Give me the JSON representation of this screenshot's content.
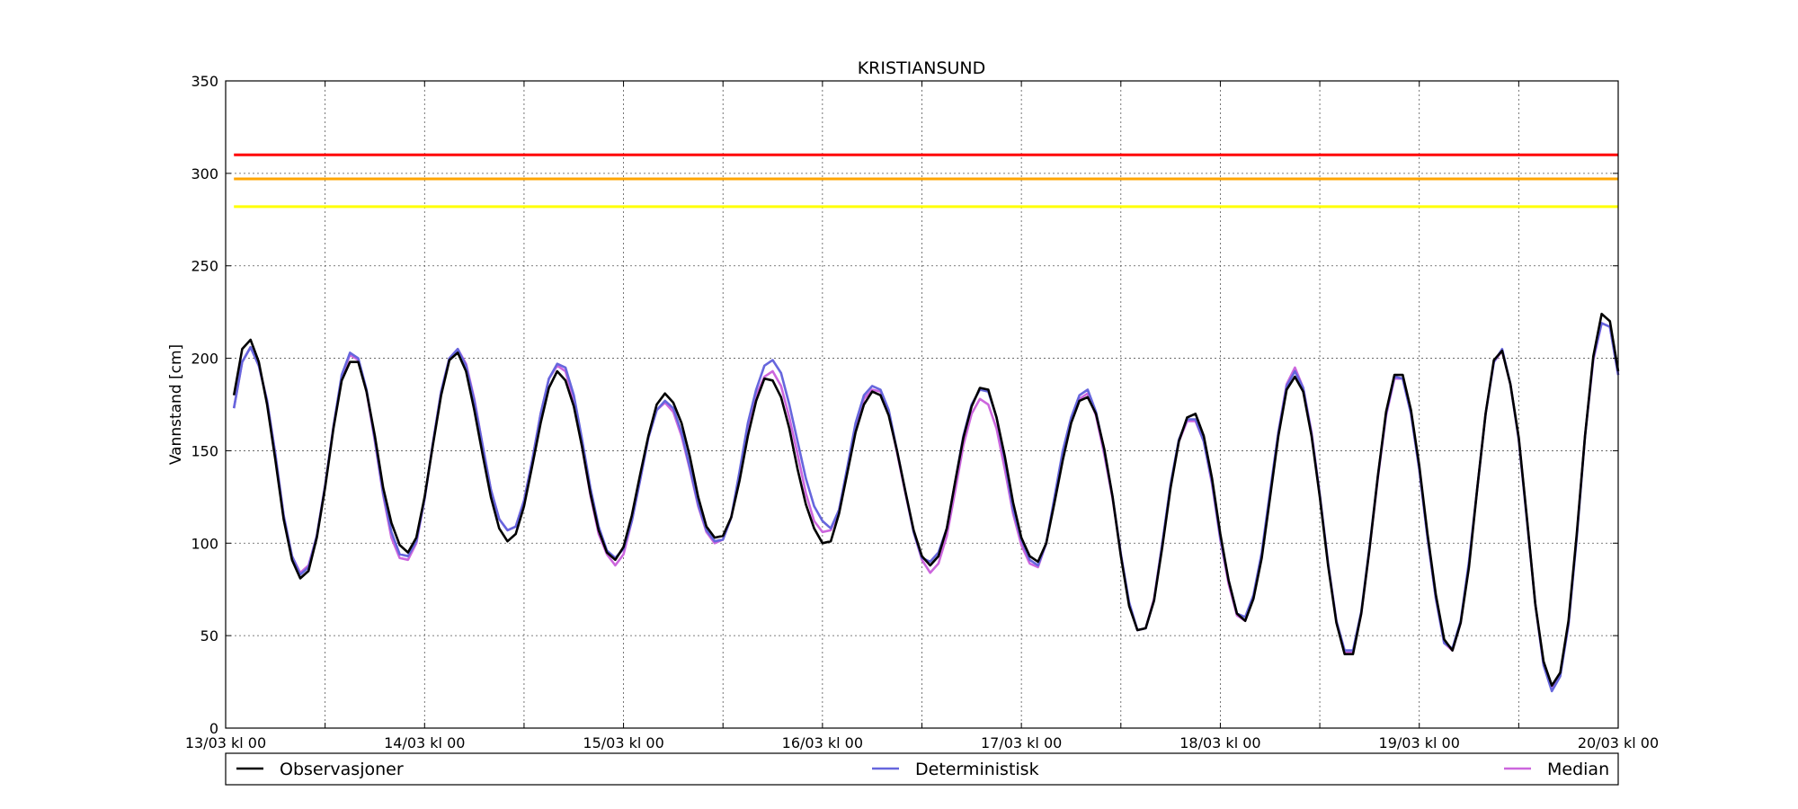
{
  "chart_data": {
    "type": "line",
    "title": "KRISTIANSUND",
    "xlabel": "",
    "ylabel": "Vannstand [cm]",
    "ylim": [
      0,
      350
    ],
    "yticks": [
      0,
      50,
      100,
      150,
      200,
      250,
      300,
      350
    ],
    "xlim_hours": [
      0,
      168
    ],
    "xtick_labels": [
      "13/03 kl 00",
      "14/03 kl 00",
      "15/03 kl 00",
      "16/03 kl 00",
      "17/03 kl 00",
      "18/03 kl 00",
      "19/03 kl 00",
      "20/03 kl 00"
    ],
    "grid": true,
    "legend_position": "bottom",
    "thresholds": [
      {
        "value": 310,
        "color": "#ff0000"
      },
      {
        "value": 297,
        "color": "#ffa500"
      },
      {
        "value": 282,
        "color": "#ffff00"
      }
    ],
    "series": [
      {
        "name": "Observasjoner",
        "color": "#000000",
        "x_hours": [
          1,
          2,
          3,
          4,
          5,
          6,
          7,
          8,
          9,
          10,
          11,
          12,
          13,
          14,
          15,
          16,
          17,
          18,
          19,
          20,
          21,
          22,
          23,
          24,
          25,
          26,
          27,
          28,
          29,
          30,
          31,
          32,
          33,
          34,
          35,
          36,
          37,
          38,
          39,
          40,
          41,
          42,
          43,
          44,
          45,
          46,
          47,
          48,
          49,
          50,
          51,
          52,
          53,
          54,
          55,
          56,
          57,
          58,
          59,
          60,
          61,
          62,
          63,
          64,
          65,
          66,
          67,
          68,
          69,
          70,
          71,
          72,
          73,
          74,
          75,
          76,
          77,
          78,
          79,
          80,
          81,
          82,
          83,
          84,
          85,
          86,
          87,
          88,
          89,
          90,
          91,
          92,
          93,
          94,
          95,
          96,
          97,
          98,
          99,
          100,
          101,
          102,
          103,
          104,
          105,
          106,
          107,
          108,
          109,
          110,
          111,
          112,
          113,
          114,
          115,
          116,
          117,
          118,
          119,
          120,
          121,
          122,
          123,
          124,
          125,
          126,
          127,
          128,
          129,
          130,
          131,
          132,
          133,
          134,
          135,
          136,
          137,
          138,
          139,
          140,
          141,
          142,
          143,
          144,
          145,
          146,
          147,
          148,
          149,
          150,
          151,
          152,
          153,
          154,
          155,
          156,
          157,
          158,
          159,
          160,
          161,
          162,
          163,
          164,
          165,
          166,
          167,
          168
        ],
        "values": [
          180,
          205,
          210,
          198,
          175,
          145,
          113,
          91,
          81,
          85,
          103,
          130,
          162,
          188,
          198,
          198,
          182,
          158,
          130,
          111,
          99,
          95,
          103,
          125,
          153,
          180,
          199,
          203,
          193,
          172,
          148,
          125,
          108,
          101,
          105,
          120,
          142,
          165,
          184,
          193,
          188,
          174,
          152,
          127,
          107,
          95,
          91,
          98,
          115,
          137,
          158,
          175,
          181,
          176,
          165,
          147,
          125,
          109,
          103,
          104,
          114,
          134,
          158,
          177,
          189,
          188,
          179,
          162,
          140,
          121,
          108,
          100,
          101,
          116,
          138,
          160,
          175,
          182,
          180,
          169,
          150,
          128,
          107,
          93,
          88,
          93,
          108,
          133,
          157,
          174,
          184,
          183,
          168,
          147,
          122,
          103,
          93,
          90,
          100,
          122,
          145,
          165,
          177,
          179,
          170,
          151,
          125,
          93,
          66,
          53,
          54,
          69,
          98,
          130,
          155,
          168,
          170,
          158,
          135,
          105,
          80,
          62,
          58,
          70,
          92,
          125,
          158,
          183,
          190,
          182,
          158,
          125,
          88,
          57,
          40,
          40,
          62,
          97,
          136,
          171,
          191,
          191,
          172,
          142,
          105,
          72,
          48,
          42,
          57,
          87,
          130,
          170,
          199,
          204,
          186,
          157,
          113,
          67,
          36,
          23,
          30,
          58,
          105,
          158,
          201,
          224,
          220,
          193
        ]
      },
      {
        "name": "Deterministisk",
        "color": "#6666dd",
        "x_hours": [
          1,
          2,
          3,
          4,
          5,
          6,
          7,
          8,
          9,
          10,
          11,
          12,
          13,
          14,
          15,
          16,
          17,
          18,
          19,
          20,
          21,
          22,
          23,
          24,
          25,
          26,
          27,
          28,
          29,
          30,
          31,
          32,
          33,
          34,
          35,
          36,
          37,
          38,
          39,
          40,
          41,
          42,
          43,
          44,
          45,
          46,
          47,
          48,
          49,
          50,
          51,
          52,
          53,
          54,
          55,
          56,
          57,
          58,
          59,
          60,
          61,
          62,
          63,
          64,
          65,
          66,
          67,
          68,
          69,
          70,
          71,
          72,
          73,
          74,
          75,
          76,
          77,
          78,
          79,
          80,
          81,
          82,
          83,
          84,
          85,
          86,
          87,
          88,
          89,
          90,
          91,
          92,
          93,
          94,
          95,
          96,
          97,
          98,
          99,
          100,
          101,
          102,
          103,
          104,
          105,
          106,
          107,
          108,
          109,
          110,
          111,
          112,
          113,
          114,
          115,
          116,
          117,
          118,
          119,
          120,
          121,
          122,
          123,
          124,
          125,
          126,
          127,
          128,
          129,
          130,
          131,
          132,
          133,
          134,
          135,
          136,
          137,
          138,
          139,
          140,
          141,
          142,
          143,
          144,
          145,
          146,
          147,
          148,
          149,
          150,
          151,
          152,
          153,
          154,
          155,
          156,
          157,
          158,
          159,
          160,
          161,
          162,
          163,
          164,
          165,
          166,
          167,
          168
        ],
        "values": [
          173,
          198,
          206,
          196,
          177,
          148,
          115,
          93,
          83,
          87,
          104,
          131,
          163,
          191,
          203,
          200,
          183,
          156,
          127,
          106,
          94,
          93,
          101,
          124,
          154,
          182,
          200,
          205,
          196,
          177,
          153,
          129,
          113,
          107,
          109,
          123,
          145,
          170,
          189,
          197,
          195,
          180,
          156,
          130,
          109,
          96,
          92,
          97,
          112,
          134,
          157,
          172,
          177,
          173,
          160,
          141,
          121,
          107,
          101,
          102,
          114,
          139,
          165,
          183,
          196,
          199,
          192,
          175,
          155,
          135,
          120,
          112,
          108,
          118,
          141,
          165,
          180,
          185,
          183,
          172,
          150,
          128,
          106,
          92,
          90,
          95,
          108,
          133,
          158,
          175,
          183,
          182,
          168,
          145,
          118,
          102,
          91,
          88,
          100,
          125,
          150,
          168,
          180,
          183,
          171,
          150,
          125,
          94,
          68,
          53,
          54,
          69,
          100,
          132,
          156,
          167,
          167,
          155,
          133,
          103,
          80,
          62,
          60,
          72,
          95,
          128,
          160,
          185,
          193,
          184,
          159,
          126,
          89,
          58,
          42,
          42,
          63,
          98,
          136,
          170,
          190,
          189,
          170,
          140,
          103,
          70,
          46,
          43,
          58,
          90,
          130,
          170,
          198,
          205,
          186,
          156,
          112,
          67,
          34,
          20,
          28,
          56,
          103,
          158,
          200,
          219,
          217,
          191
        ]
      },
      {
        "name": "Median",
        "color": "#cc66dd",
        "x_hours": [
          1,
          2,
          3,
          4,
          5,
          6,
          7,
          8,
          9,
          10,
          11,
          12,
          13,
          14,
          15,
          16,
          17,
          18,
          19,
          20,
          21,
          22,
          23,
          24,
          25,
          26,
          27,
          28,
          29,
          30,
          31,
          32,
          33,
          34,
          35,
          36,
          37,
          38,
          39,
          40,
          41,
          42,
          43,
          44,
          45,
          46,
          47,
          48,
          49,
          50,
          51,
          52,
          53,
          54,
          55,
          56,
          57,
          58,
          59,
          60,
          61,
          62,
          63,
          64,
          65,
          66,
          67,
          68,
          69,
          70,
          71,
          72,
          73,
          74,
          75,
          76,
          77,
          78,
          79,
          80,
          81,
          82,
          83,
          84,
          85,
          86,
          87,
          88,
          89,
          90,
          91,
          92,
          93,
          94,
          95,
          96,
          97,
          98,
          99,
          100,
          101,
          102,
          103,
          104,
          105,
          106,
          107,
          108,
          109,
          110,
          111,
          112,
          113,
          114,
          115,
          116,
          117,
          118,
          119,
          120,
          121,
          122,
          123,
          124,
          125,
          126,
          127,
          128,
          129,
          130,
          131,
          132,
          133,
          134,
          135,
          136,
          137,
          138,
          139,
          140,
          141,
          142,
          143,
          144,
          145,
          146,
          147,
          148,
          149,
          150,
          151,
          152,
          153,
          154,
          155,
          156,
          157,
          158,
          159,
          160,
          161,
          162,
          163,
          164,
          165,
          166,
          167,
          168
        ],
        "values": [
          173,
          198,
          206,
          196,
          177,
          148,
          115,
          93,
          84,
          88,
          104,
          131,
          163,
          190,
          202,
          199,
          182,
          155,
          126,
          103,
          92,
          91,
          100,
          124,
          154,
          182,
          200,
          205,
          197,
          178,
          153,
          129,
          113,
          107,
          109,
          123,
          145,
          170,
          189,
          196,
          193,
          177,
          152,
          126,
          105,
          94,
          88,
          94,
          112,
          134,
          157,
          172,
          176,
          171,
          158,
          140,
          120,
          106,
          100,
          102,
          114,
          137,
          161,
          180,
          190,
          193,
          185,
          168,
          148,
          127,
          112,
          106,
          107,
          118,
          140,
          163,
          178,
          183,
          182,
          170,
          149,
          127,
          106,
          91,
          84,
          89,
          104,
          128,
          153,
          170,
          178,
          175,
          162,
          140,
          116,
          99,
          89,
          87,
          100,
          124,
          149,
          167,
          178,
          181,
          169,
          148,
          124,
          94,
          67,
          53,
          54,
          70,
          100,
          131,
          155,
          166,
          166,
          155,
          132,
          102,
          78,
          61,
          58,
          71,
          94,
          127,
          160,
          186,
          195,
          184,
          160,
          126,
          89,
          58,
          41,
          41,
          62,
          97,
          135,
          169,
          189,
          189,
          170,
          140,
          103,
          70,
          46,
          42,
          57,
          89,
          130,
          170,
          198,
          204,
          186,
          156,
          112,
          67,
          34,
          21,
          29,
          56,
          104,
          158,
          199,
          219,
          217,
          191
        ]
      }
    ]
  }
}
